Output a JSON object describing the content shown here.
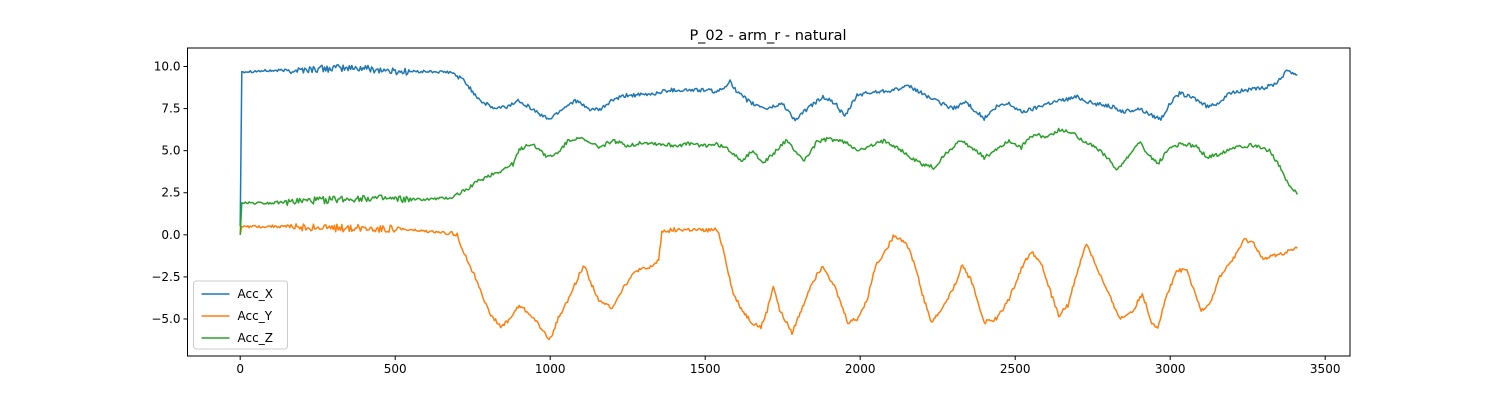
{
  "chart_data": {
    "type": "line",
    "title": "P_02 - arm_r - natural",
    "xlabel": "",
    "ylabel": "",
    "xlim": [
      -170,
      3580
    ],
    "ylim": [
      -7.2,
      11.1
    ],
    "xticks": [
      0,
      500,
      1000,
      1500,
      2000,
      2500,
      3000,
      3500
    ],
    "yticks": [
      -5.0,
      -2.5,
      0.0,
      2.5,
      5.0,
      7.5,
      10.0
    ],
    "xtick_labels": [
      "0",
      "500",
      "1000",
      "1500",
      "2000",
      "2500",
      "3000",
      "3500"
    ],
    "ytick_labels": [
      "−5.0",
      "−2.5",
      "0.0",
      "2.5",
      "5.0",
      "7.5",
      "10.0"
    ],
    "grid": false,
    "legend_position": "lower-left",
    "series": [
      {
        "name": "Acc_X",
        "color": "#1f77b4",
        "points": [
          [
            0,
            0.5
          ],
          [
            5,
            9.7
          ],
          [
            100,
            9.75
          ],
          [
            200,
            9.8
          ],
          [
            300,
            9.9
          ],
          [
            400,
            9.9
          ],
          [
            500,
            9.7
          ],
          [
            600,
            9.7
          ],
          [
            680,
            9.65
          ],
          [
            720,
            9.2
          ],
          [
            750,
            8.5
          ],
          [
            780,
            7.9
          ],
          [
            820,
            7.5
          ],
          [
            860,
            7.6
          ],
          [
            900,
            8.0
          ],
          [
            940,
            7.5
          ],
          [
            980,
            7.0
          ],
          [
            1000,
            6.9
          ],
          [
            1040,
            7.5
          ],
          [
            1080,
            8.0
          ],
          [
            1120,
            7.5
          ],
          [
            1160,
            7.4
          ],
          [
            1200,
            8.0
          ],
          [
            1250,
            8.3
          ],
          [
            1300,
            8.3
          ],
          [
            1340,
            8.4
          ],
          [
            1380,
            8.6
          ],
          [
            1450,
            8.6
          ],
          [
            1500,
            8.6
          ],
          [
            1540,
            8.5
          ],
          [
            1560,
            8.7
          ],
          [
            1580,
            9.2
          ],
          [
            1600,
            8.5
          ],
          [
            1650,
            7.8
          ],
          [
            1700,
            7.5
          ],
          [
            1750,
            7.8
          ],
          [
            1790,
            6.8
          ],
          [
            1830,
            7.5
          ],
          [
            1880,
            8.2
          ],
          [
            1920,
            7.8
          ],
          [
            1950,
            7.0
          ],
          [
            1990,
            8.3
          ],
          [
            2050,
            8.5
          ],
          [
            2100,
            8.6
          ],
          [
            2160,
            8.8
          ],
          [
            2200,
            8.4
          ],
          [
            2250,
            7.9
          ],
          [
            2300,
            7.5
          ],
          [
            2340,
            7.9
          ],
          [
            2370,
            7.4
          ],
          [
            2400,
            6.9
          ],
          [
            2440,
            7.6
          ],
          [
            2480,
            7.8
          ],
          [
            2520,
            7.3
          ],
          [
            2560,
            7.5
          ],
          [
            2600,
            7.8
          ],
          [
            2650,
            8.0
          ],
          [
            2700,
            8.2
          ],
          [
            2750,
            7.8
          ],
          [
            2800,
            7.7
          ],
          [
            2850,
            7.3
          ],
          [
            2900,
            7.5
          ],
          [
            2940,
            7.1
          ],
          [
            2970,
            6.9
          ],
          [
            3000,
            7.8
          ],
          [
            3030,
            8.4
          ],
          [
            3080,
            8.1
          ],
          [
            3120,
            7.6
          ],
          [
            3160,
            7.9
          ],
          [
            3200,
            8.5
          ],
          [
            3250,
            8.6
          ],
          [
            3300,
            8.7
          ],
          [
            3340,
            9.0
          ],
          [
            3380,
            9.8
          ],
          [
            3410,
            9.5
          ]
        ]
      },
      {
        "name": "Acc_Y",
        "color": "#ff7f0e",
        "points": [
          [
            0,
            0.0
          ],
          [
            5,
            0.5
          ],
          [
            100,
            0.5
          ],
          [
            200,
            0.45
          ],
          [
            300,
            0.4
          ],
          [
            400,
            0.4
          ],
          [
            500,
            0.35
          ],
          [
            600,
            0.2
          ],
          [
            700,
            0.05
          ],
          [
            720,
            -1.0
          ],
          [
            740,
            -1.8
          ],
          [
            770,
            -3.0
          ],
          [
            800,
            -4.5
          ],
          [
            840,
            -5.5
          ],
          [
            870,
            -5.0
          ],
          [
            900,
            -4.2
          ],
          [
            940,
            -4.8
          ],
          [
            980,
            -5.8
          ],
          [
            1000,
            -6.2
          ],
          [
            1030,
            -4.8
          ],
          [
            1060,
            -3.8
          ],
          [
            1090,
            -2.5
          ],
          [
            1110,
            -1.8
          ],
          [
            1130,
            -2.8
          ],
          [
            1160,
            -4.0
          ],
          [
            1200,
            -4.3
          ],
          [
            1240,
            -3.0
          ],
          [
            1280,
            -2.1
          ],
          [
            1320,
            -2.0
          ],
          [
            1350,
            -1.5
          ],
          [
            1360,
            0.2
          ],
          [
            1400,
            0.3
          ],
          [
            1450,
            0.3
          ],
          [
            1500,
            0.25
          ],
          [
            1540,
            0.3
          ],
          [
            1560,
            -1.0
          ],
          [
            1590,
            -3.5
          ],
          [
            1620,
            -4.5
          ],
          [
            1650,
            -5.2
          ],
          [
            1680,
            -5.5
          ],
          [
            1700,
            -4.5
          ],
          [
            1720,
            -3.0
          ],
          [
            1740,
            -4.5
          ],
          [
            1780,
            -5.8
          ],
          [
            1810,
            -4.5
          ],
          [
            1840,
            -3.0
          ],
          [
            1880,
            -1.8
          ],
          [
            1920,
            -3.2
          ],
          [
            1960,
            -5.2
          ],
          [
            1990,
            -5.0
          ],
          [
            2020,
            -4.0
          ],
          [
            2050,
            -1.8
          ],
          [
            2080,
            -1.0
          ],
          [
            2110,
            0.0
          ],
          [
            2150,
            -0.5
          ],
          [
            2180,
            -2.0
          ],
          [
            2200,
            -3.5
          ],
          [
            2230,
            -5.2
          ],
          [
            2260,
            -4.5
          ],
          [
            2300,
            -3.2
          ],
          [
            2330,
            -1.8
          ],
          [
            2360,
            -2.8
          ],
          [
            2400,
            -5.2
          ],
          [
            2440,
            -5.0
          ],
          [
            2480,
            -3.8
          ],
          [
            2520,
            -2.0
          ],
          [
            2550,
            -1.0
          ],
          [
            2580,
            -1.5
          ],
          [
            2610,
            -3.2
          ],
          [
            2640,
            -4.8
          ],
          [
            2670,
            -4.2
          ],
          [
            2700,
            -2.2
          ],
          [
            2730,
            -0.5
          ],
          [
            2760,
            -1.8
          ],
          [
            2800,
            -3.5
          ],
          [
            2840,
            -5.0
          ],
          [
            2880,
            -4.5
          ],
          [
            2910,
            -3.5
          ],
          [
            2940,
            -5.2
          ],
          [
            2960,
            -5.5
          ],
          [
            2990,
            -3.5
          ],
          [
            3020,
            -2.2
          ],
          [
            3050,
            -2.0
          ],
          [
            3080,
            -3.5
          ],
          [
            3100,
            -4.5
          ],
          [
            3130,
            -4.0
          ],
          [
            3160,
            -2.5
          ],
          [
            3200,
            -1.5
          ],
          [
            3240,
            -0.3
          ],
          [
            3270,
            -0.5
          ],
          [
            3300,
            -1.5
          ],
          [
            3340,
            -1.2
          ],
          [
            3380,
            -1.0
          ],
          [
            3410,
            -0.8
          ]
        ]
      },
      {
        "name": "Acc_Z",
        "color": "#2ca02c",
        "points": [
          [
            0,
            0.0
          ],
          [
            5,
            1.9
          ],
          [
            100,
            1.9
          ],
          [
            200,
            2.0
          ],
          [
            300,
            2.1
          ],
          [
            400,
            2.2
          ],
          [
            500,
            2.1
          ],
          [
            600,
            2.1
          ],
          [
            680,
            2.2
          ],
          [
            720,
            2.6
          ],
          [
            760,
            3.1
          ],
          [
            800,
            3.5
          ],
          [
            840,
            3.8
          ],
          [
            880,
            4.2
          ],
          [
            900,
            5.0
          ],
          [
            930,
            5.4
          ],
          [
            960,
            5.2
          ],
          [
            990,
            4.6
          ],
          [
            1020,
            4.8
          ],
          [
            1060,
            5.6
          ],
          [
            1090,
            5.8
          ],
          [
            1120,
            5.5
          ],
          [
            1160,
            5.2
          ],
          [
            1200,
            5.6
          ],
          [
            1250,
            5.3
          ],
          [
            1300,
            5.5
          ],
          [
            1350,
            5.4
          ],
          [
            1400,
            5.3
          ],
          [
            1450,
            5.4
          ],
          [
            1500,
            5.3
          ],
          [
            1540,
            5.4
          ],
          [
            1580,
            5.0
          ],
          [
            1620,
            4.4
          ],
          [
            1650,
            5.0
          ],
          [
            1690,
            4.3
          ],
          [
            1720,
            4.8
          ],
          [
            1760,
            5.6
          ],
          [
            1790,
            5.0
          ],
          [
            1820,
            4.4
          ],
          [
            1860,
            5.5
          ],
          [
            1900,
            5.7
          ],
          [
            1950,
            5.5
          ],
          [
            2000,
            5.0
          ],
          [
            2040,
            5.3
          ],
          [
            2080,
            5.6
          ],
          [
            2120,
            5.2
          ],
          [
            2160,
            4.6
          ],
          [
            2200,
            4.2
          ],
          [
            2240,
            4.0
          ],
          [
            2280,
            4.9
          ],
          [
            2320,
            5.6
          ],
          [
            2360,
            5.2
          ],
          [
            2400,
            4.6
          ],
          [
            2440,
            5.1
          ],
          [
            2480,
            5.6
          ],
          [
            2520,
            5.2
          ],
          [
            2560,
            6.0
          ],
          [
            2600,
            5.8
          ],
          [
            2640,
            6.2
          ],
          [
            2680,
            6.1
          ],
          [
            2720,
            5.6
          ],
          [
            2760,
            5.2
          ],
          [
            2800,
            4.5
          ],
          [
            2830,
            3.9
          ],
          [
            2860,
            4.5
          ],
          [
            2900,
            5.5
          ],
          [
            2930,
            4.8
          ],
          [
            2960,
            4.2
          ],
          [
            3000,
            5.2
          ],
          [
            3040,
            5.4
          ],
          [
            3080,
            5.3
          ],
          [
            3120,
            4.6
          ],
          [
            3160,
            4.8
          ],
          [
            3200,
            5.2
          ],
          [
            3240,
            5.3
          ],
          [
            3280,
            5.3
          ],
          [
            3320,
            5.0
          ],
          [
            3350,
            4.2
          ],
          [
            3380,
            3.0
          ],
          [
            3410,
            2.4
          ]
        ]
      }
    ]
  }
}
